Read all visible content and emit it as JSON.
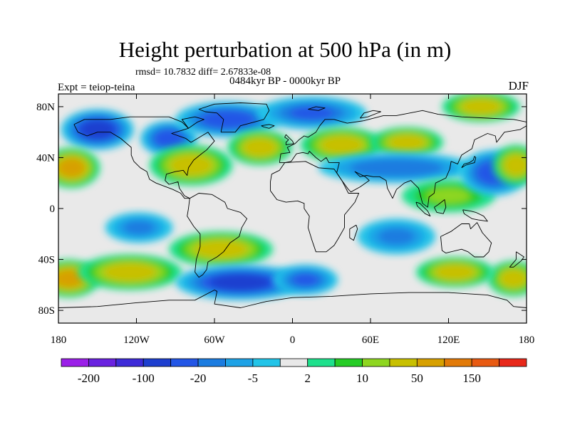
{
  "chart_data": {
    "type": "heatmap",
    "title": "Height perturbation at 500 hPa (in m)",
    "stats_text": "rmsd= 10.7832  diff= 2.67833e-08",
    "period_text": "0484kyr BP - 0000kyr BP",
    "experiment_text": "Expt = teiop-teina",
    "season": "DJF",
    "xlim": [
      -180,
      180
    ],
    "ylim": [
      -90,
      90
    ],
    "x_ticks": [
      {
        "value": -180,
        "label": "180"
      },
      {
        "value": -120,
        "label": "120W"
      },
      {
        "value": -60,
        "label": "60W"
      },
      {
        "value": 0,
        "label": "0"
      },
      {
        "value": 60,
        "label": "60E"
      },
      {
        "value": 120,
        "label": "120E"
      },
      {
        "value": 180,
        "label": "180"
      }
    ],
    "y_ticks": [
      {
        "value": 80,
        "label": "80N"
      },
      {
        "value": 40,
        "label": "40N"
      },
      {
        "value": 0,
        "label": "0"
      },
      {
        "value": -40,
        "label": "40S"
      },
      {
        "value": -80,
        "label": "80S"
      }
    ],
    "colorbar": {
      "colors": [
        "#9b1fe8",
        "#6a22e0",
        "#3e2bd8",
        "#1e3fcf",
        "#2356e6",
        "#1b7ce0",
        "#1ea2e6",
        "#22c4e8",
        "#e8e8e8",
        "#1ee08c",
        "#26cc26",
        "#8ed620",
        "#c8c000",
        "#d7a000",
        "#e27a08",
        "#e85a12",
        "#e8281a"
      ],
      "labels": [
        {
          "after_box": 1,
          "text": "-200"
        },
        {
          "after_box": 3,
          "text": "-100"
        },
        {
          "after_box": 5,
          "text": "-20"
        },
        {
          "after_box": 7,
          "text": "-5"
        },
        {
          "after_box": 9,
          "text": "2"
        },
        {
          "after_box": 11,
          "text": "10"
        },
        {
          "after_box": 13,
          "text": "50"
        },
        {
          "after_box": 15,
          "text": "150"
        }
      ]
    },
    "field_anomalies_m": [
      {
        "lon": -150,
        "lat": 62,
        "value": -70,
        "rx": 28,
        "ry": 16
      },
      {
        "lon": -170,
        "lat": 32,
        "value": 60,
        "rx": 22,
        "ry": 16
      },
      {
        "lon": -172,
        "lat": -55,
        "value": 60,
        "rx": 24,
        "ry": 15
      },
      {
        "lon": -125,
        "lat": -50,
        "value": 40,
        "rx": 40,
        "ry": 14
      },
      {
        "lon": -95,
        "lat": 55,
        "value": -25,
        "rx": 22,
        "ry": 14
      },
      {
        "lon": -50,
        "lat": 70,
        "value": -25,
        "rx": 40,
        "ry": 14
      },
      {
        "lon": -78,
        "lat": 34,
        "value": 40,
        "rx": 32,
        "ry": 16
      },
      {
        "lon": -55,
        "lat": -32,
        "value": 30,
        "rx": 40,
        "ry": 14
      },
      {
        "lon": -118,
        "lat": -15,
        "value": -10,
        "rx": 26,
        "ry": 12
      },
      {
        "lon": -40,
        "lat": -58,
        "value": -60,
        "rx": 50,
        "ry": 14
      },
      {
        "lon": 10,
        "lat": -56,
        "value": -20,
        "rx": 25,
        "ry": 12
      },
      {
        "lon": -25,
        "lat": 48,
        "value": 35,
        "rx": 25,
        "ry": 14
      },
      {
        "lon": 15,
        "lat": 75,
        "value": -20,
        "rx": 42,
        "ry": 13
      },
      {
        "lon": 38,
        "lat": 50,
        "value": 25,
        "rx": 32,
        "ry": 14
      },
      {
        "lon": 88,
        "lat": 52,
        "value": 40,
        "rx": 28,
        "ry": 12
      },
      {
        "lon": 80,
        "lat": 32,
        "value": -15,
        "rx": 60,
        "ry": 12
      },
      {
        "lon": 120,
        "lat": 10,
        "value": 10,
        "rx": 36,
        "ry": 13
      },
      {
        "lon": 155,
        "lat": 28,
        "value": -45,
        "rx": 26,
        "ry": 18
      },
      {
        "lon": 172,
        "lat": 34,
        "value": 45,
        "rx": 18,
        "ry": 16
      },
      {
        "lon": 145,
        "lat": 80,
        "value": 30,
        "rx": 30,
        "ry": 12
      },
      {
        "lon": 80,
        "lat": -22,
        "value": -10,
        "rx": 30,
        "ry": 14
      },
      {
        "lon": 170,
        "lat": -55,
        "value": 40,
        "rx": 20,
        "ry": 14
      },
      {
        "lon": 125,
        "lat": -50,
        "value": 25,
        "rx": 30,
        "ry": 12
      }
    ]
  }
}
